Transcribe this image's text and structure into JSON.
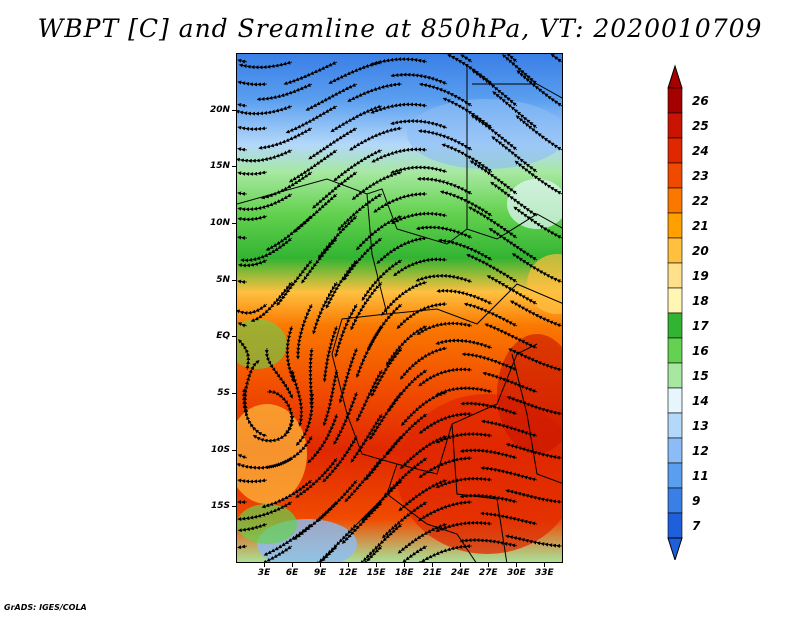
{
  "title": "WBPT [C] and Sreamline at 850hPa, VT: 2020010709",
  "credit": "GrADS: IGES/COLA",
  "map": {
    "lat_range": [
      -20,
      25
    ],
    "lon_range": [
      0,
      35
    ],
    "lat_ticks": [
      {
        "label": "20N",
        "lat": 20
      },
      {
        "label": "15N",
        "lat": 15
      },
      {
        "label": "10N",
        "lat": 10
      },
      {
        "label": "5N",
        "lat": 5
      },
      {
        "label": "EQ",
        "lat": 0
      },
      {
        "label": "5S",
        "lat": -5
      },
      {
        "label": "10S",
        "lat": -10
      },
      {
        "label": "15S",
        "lat": -15
      }
    ],
    "lon_ticks": [
      {
        "label": "3E",
        "lon": 3
      },
      {
        "label": "6E",
        "lon": 6
      },
      {
        "label": "9E",
        "lon": 9
      },
      {
        "label": "12E",
        "lon": 12
      },
      {
        "label": "15E",
        "lon": 15
      },
      {
        "label": "18E",
        "lon": 18
      },
      {
        "label": "21E",
        "lon": 21
      },
      {
        "label": "24E",
        "lon": 24
      },
      {
        "label": "27E",
        "lon": 27
      },
      {
        "label": "30E",
        "lon": 30
      },
      {
        "label": "33E",
        "lon": 33
      }
    ]
  },
  "colorbar": {
    "levels": [
      {
        "label": "26",
        "color": "#a50000"
      },
      {
        "label": "25",
        "color": "#c81400"
      },
      {
        "label": "24",
        "color": "#e02800"
      },
      {
        "label": "23",
        "color": "#f04a00"
      },
      {
        "label": "22",
        "color": "#fa7800"
      },
      {
        "label": "21",
        "color": "#ffa000"
      },
      {
        "label": "20",
        "color": "#ffc040"
      },
      {
        "label": "19",
        "color": "#ffe08c"
      },
      {
        "label": "18",
        "color": "#fff6b4"
      },
      {
        "label": "17",
        "color": "#32b432"
      },
      {
        "label": "16",
        "color": "#64d250"
      },
      {
        "label": "15",
        "color": "#a6e8a0"
      },
      {
        "label": "14",
        "color": "#e6f6fc"
      },
      {
        "label": "13",
        "color": "#b4d8fa"
      },
      {
        "label": "12",
        "color": "#8cbcf5"
      },
      {
        "label": "11",
        "color": "#5a9ef0"
      },
      {
        "label": "9",
        "color": "#3a7fe6"
      },
      {
        "label": "7",
        "color": "#1e5fdc"
      }
    ],
    "below_color": "#1e5fdc",
    "above_color": "#a50000"
  },
  "field": {
    "bands": [
      {
        "lat": 25,
        "value": 9
      },
      {
        "lat": 21,
        "value": 11
      },
      {
        "lat": 17,
        "value": 13
      },
      {
        "lat": 14.5,
        "value": 15
      },
      {
        "lat": 11,
        "value": 16
      },
      {
        "lat": 7,
        "value": 17
      },
      {
        "lat": 4,
        "value": 20
      },
      {
        "lat": 1,
        "value": 22
      },
      {
        "lat": -5,
        "value": 23
      },
      {
        "lat": -10,
        "value": 24
      },
      {
        "lat": -16,
        "value": 23
      },
      {
        "lat": -20,
        "value": 15
      }
    ]
  }
}
